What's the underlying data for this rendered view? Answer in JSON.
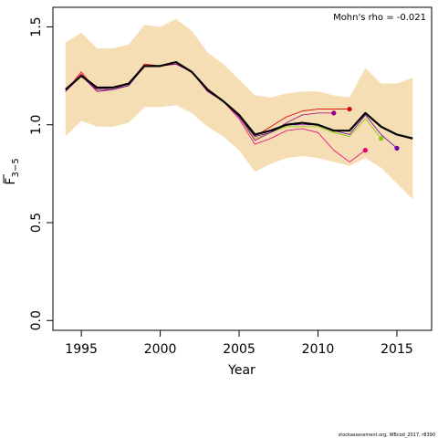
{
  "chart_data": {
    "type": "line",
    "xlabel": "Year",
    "ylabel": "F3-5",
    "xlim": [
      1993.2,
      2017.2
    ],
    "ylim": [
      -0.05,
      1.6
    ],
    "x_ticks": [
      1995,
      2000,
      2005,
      2010,
      2015
    ],
    "x_tick_labels": [
      "1995",
      "2000",
      "2005",
      "2010",
      "2015"
    ],
    "y_ticks": [
      0.0,
      0.5,
      1.0,
      1.5
    ],
    "y_tick_labels": [
      "0.0",
      "0.5",
      "1.0",
      "1.5"
    ],
    "grid": false,
    "annotation": "Mohn's rho = -0.021",
    "credit": "stockassessment.org, WBcod_2017, r8390",
    "band": {
      "color": "#f5deb3",
      "x": [
        1994,
        1995,
        1996,
        1997,
        1998,
        1999,
        2000,
        2001,
        2002,
        2003,
        2004,
        2005,
        2006,
        2007,
        2008,
        2009,
        2010,
        2011,
        2012,
        2013,
        2014,
        2015,
        2016
      ],
      "upper": [
        1.42,
        1.47,
        1.39,
        1.39,
        1.41,
        1.51,
        1.5,
        1.54,
        1.48,
        1.37,
        1.31,
        1.23,
        1.15,
        1.14,
        1.16,
        1.17,
        1.17,
        1.15,
        1.14,
        1.29,
        1.21,
        1.21,
        1.24
      ],
      "lower": [
        0.94,
        1.02,
        0.99,
        0.99,
        1.01,
        1.09,
        1.09,
        1.1,
        1.06,
        0.99,
        0.94,
        0.87,
        0.76,
        0.8,
        0.83,
        0.84,
        0.83,
        0.81,
        0.79,
        0.83,
        0.78,
        0.7,
        0.62
      ]
    },
    "series": [
      {
        "color": "#e8007a",
        "width": 0.8,
        "dot": true,
        "x": [
          1994,
          1995,
          1996,
          1997,
          1998,
          1999,
          2000,
          2001,
          2002,
          2003,
          2004,
          2005,
          2006,
          2007,
          2008,
          2009,
          2010,
          2011,
          2012,
          2013
        ],
        "values": [
          1.17,
          1.26,
          1.18,
          1.18,
          1.21,
          1.31,
          1.3,
          1.31,
          1.27,
          1.17,
          1.12,
          1.03,
          0.9,
          0.93,
          0.97,
          0.98,
          0.96,
          0.87,
          0.81,
          0.87
        ]
      },
      {
        "color": "#e00000",
        "width": 0.8,
        "dot": true,
        "x": [
          1994,
          1995,
          1996,
          1997,
          1998,
          1999,
          2000,
          2001,
          2002,
          2003,
          2004,
          2005,
          2006,
          2007,
          2008,
          2009,
          2010,
          2011,
          2012
        ],
        "values": [
          1.17,
          1.27,
          1.17,
          1.18,
          1.2,
          1.31,
          1.3,
          1.31,
          1.27,
          1.17,
          1.12,
          1.04,
          0.94,
          0.99,
          1.04,
          1.07,
          1.08,
          1.08,
          1.08
        ]
      },
      {
        "color": "#9a0090",
        "width": 0.8,
        "dot": true,
        "x": [
          1994,
          1995,
          1996,
          1997,
          1998,
          1999,
          2000,
          2001,
          2002,
          2003,
          2004,
          2005,
          2006,
          2007,
          2008,
          2009,
          2010,
          2011
        ],
        "values": [
          1.17,
          1.25,
          1.17,
          1.18,
          1.2,
          1.3,
          1.3,
          1.31,
          1.27,
          1.17,
          1.12,
          1.04,
          0.92,
          0.96,
          1.01,
          1.05,
          1.06,
          1.06
        ]
      },
      {
        "color": "#8cc800",
        "width": 0.8,
        "dot": true,
        "x": [
          1994,
          1995,
          1996,
          1997,
          1998,
          1999,
          2000,
          2001,
          2002,
          2003,
          2004,
          2005,
          2006,
          2007,
          2008,
          2009,
          2010,
          2011,
          2012,
          2013,
          2014
        ],
        "values": [
          1.18,
          1.25,
          1.18,
          1.18,
          1.2,
          1.3,
          1.3,
          1.32,
          1.27,
          1.18,
          1.12,
          1.04,
          0.93,
          0.96,
          0.99,
          0.99,
          0.99,
          0.96,
          0.94,
          1.03,
          0.93
        ]
      },
      {
        "color": "#6a00b0",
        "width": 0.8,
        "dot": true,
        "x": [
          1994,
          1995,
          1996,
          1997,
          1998,
          1999,
          2000,
          2001,
          2002,
          2003,
          2004,
          2005,
          2006,
          2007,
          2008,
          2009,
          2010,
          2011,
          2012,
          2013,
          2014,
          2015
        ],
        "values": [
          1.18,
          1.25,
          1.18,
          1.18,
          1.2,
          1.3,
          1.3,
          1.32,
          1.27,
          1.18,
          1.12,
          1.04,
          0.94,
          0.96,
          1.0,
          1.0,
          1.0,
          0.97,
          0.95,
          1.05,
          0.95,
          0.88
        ]
      },
      {
        "color": "#000000",
        "width": 2.2,
        "dot": false,
        "x": [
          1994,
          1995,
          1996,
          1997,
          1998,
          1999,
          2000,
          2001,
          2002,
          2003,
          2004,
          2005,
          2006,
          2007,
          2008,
          2009,
          2010,
          2011,
          2012,
          2013,
          2014,
          2015,
          2016
        ],
        "values": [
          1.18,
          1.25,
          1.19,
          1.19,
          1.21,
          1.3,
          1.3,
          1.32,
          1.27,
          1.18,
          1.12,
          1.05,
          0.95,
          0.97,
          1.0,
          1.01,
          1.0,
          0.97,
          0.97,
          1.06,
          0.99,
          0.95,
          0.93
        ]
      }
    ]
  }
}
